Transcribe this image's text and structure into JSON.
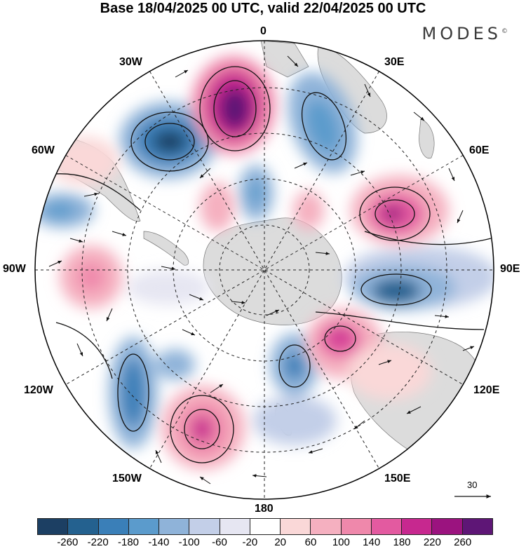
{
  "title": "Base 18/04/2025 00 UTC, valid 22/04/2025 00 UTC",
  "brand": "MODES",
  "brand_mark": "©",
  "longitude_labels": {
    "top": "0",
    "bottom": "180",
    "left": "90W",
    "right": "90E",
    "w30": "30W",
    "w60": "60W",
    "w120": "120W",
    "w150": "150W",
    "e30": "30E",
    "e60": "60E",
    "e120": "120E",
    "e150": "150E"
  },
  "reference_vector": "30",
  "colorbar": {
    "colors": [
      "#1c3f63",
      "#24618f",
      "#3a7fb8",
      "#5b9bcc",
      "#8fb3d9",
      "#c3cfe8",
      "#e6e6f2",
      "#ffffff",
      "#fad8d8",
      "#f5b0c0",
      "#ef88ab",
      "#e35aa0",
      "#c7288f",
      "#9b137f",
      "#5e1676"
    ],
    "ticks": [
      "-260",
      "-220",
      "-180",
      "-140",
      "-100",
      "-60",
      "-20",
      "20",
      "60",
      "100",
      "140",
      "180",
      "220",
      "260"
    ]
  }
}
